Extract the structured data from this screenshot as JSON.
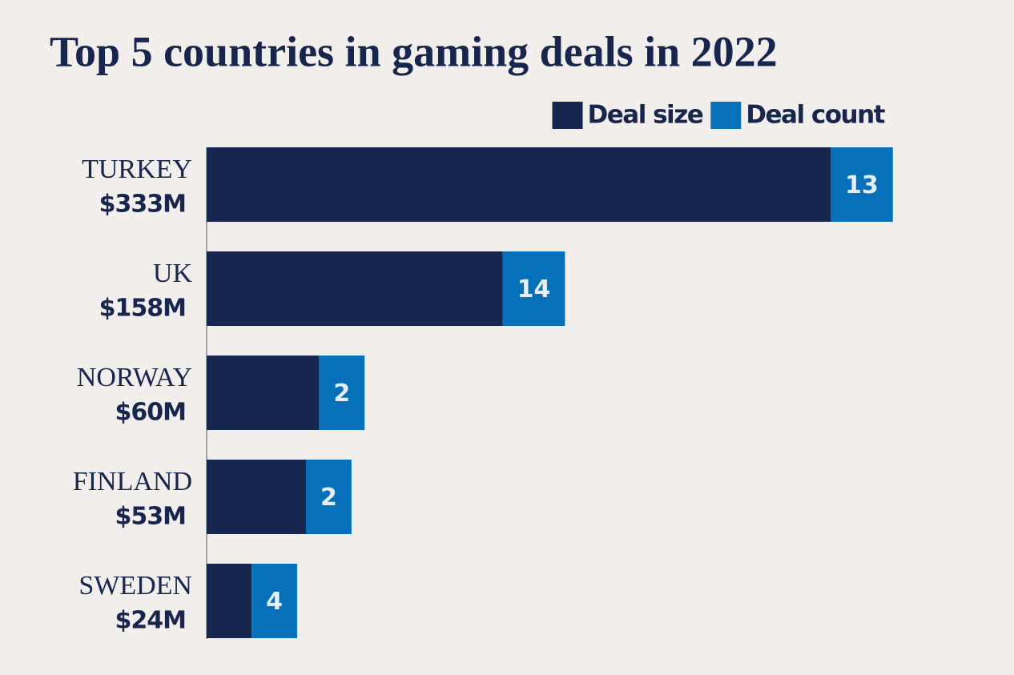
{
  "chart_data": {
    "type": "bar",
    "orientation": "horizontal",
    "stacked": true,
    "title": "Top 5 countries in gaming deals in 2022",
    "categories": [
      "TURKEY",
      "UK",
      "NORWAY",
      "FINLAND",
      "SWEDEN"
    ],
    "legend": "top-right",
    "series": [
      {
        "name": "Deal size",
        "color": "#16264f",
        "values": [
          333,
          158,
          60,
          53,
          24
        ],
        "value_labels": [
          "$333M",
          "$158M",
          "$60M",
          "$53M",
          "$24M"
        ]
      },
      {
        "name": "Deal count",
        "color": "#0770ba",
        "values": [
          13,
          14,
          2,
          2,
          4
        ]
      }
    ]
  }
}
